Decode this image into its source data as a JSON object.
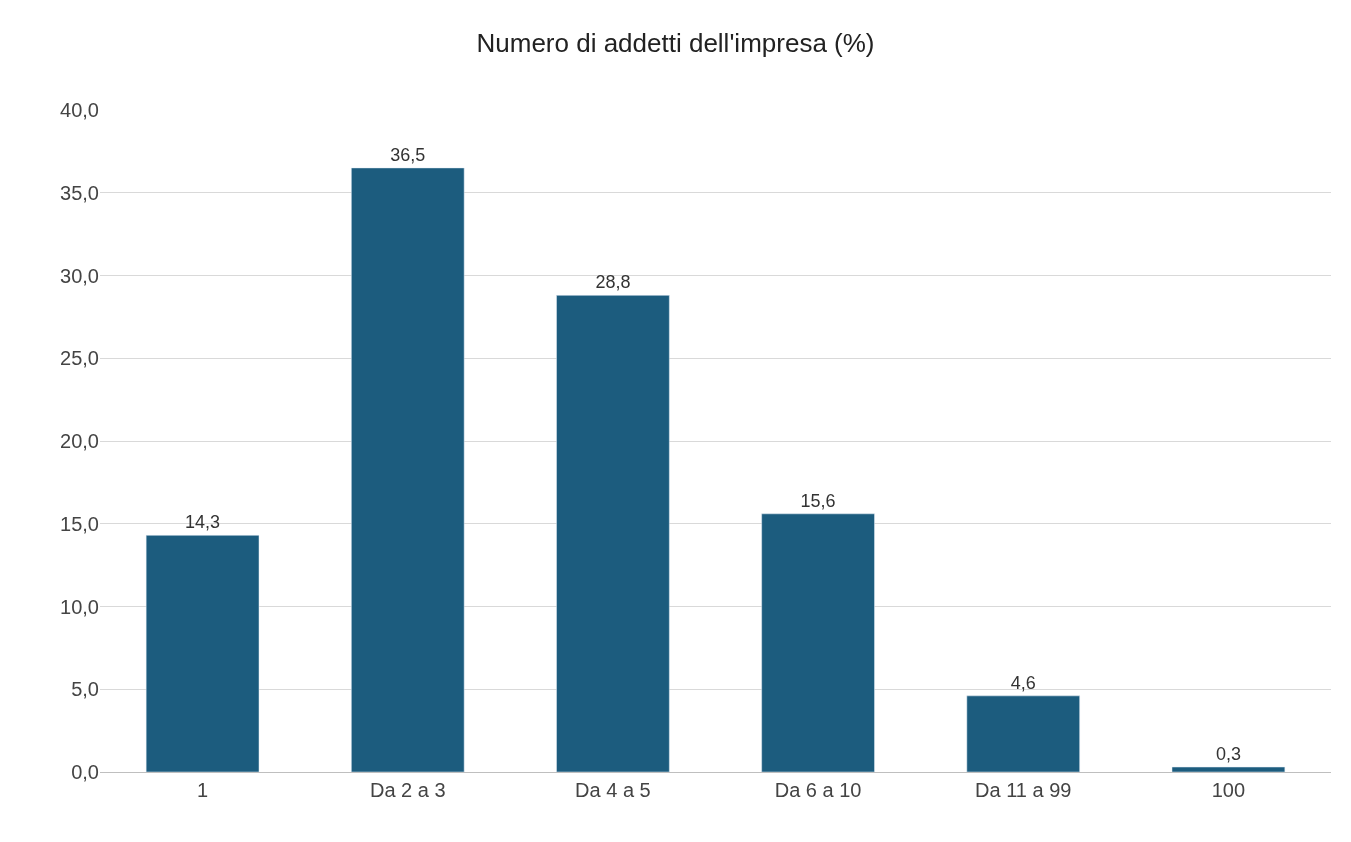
{
  "chart_data": {
    "type": "bar",
    "title": "Numero di addetti dell'impresa (%)",
    "categories": [
      "1",
      "Da 2 a 3",
      "Da 4 a 5",
      "Da 6 a 10",
      "Da 11 a 99",
      "100"
    ],
    "values": [
      14.3,
      36.5,
      28.8,
      15.6,
      4.6,
      0.3
    ],
    "value_labels": [
      "14,3",
      "36,5",
      "28,8",
      "15,6",
      "4,6",
      "0,3"
    ],
    "color": "#1c5c7e",
    "ylim": [
      0,
      40
    ],
    "yticks": [
      {
        "value": 0,
        "label": "0,0"
      },
      {
        "value": 5,
        "label": "5,0"
      },
      {
        "value": 10,
        "label": "10,0"
      },
      {
        "value": 15,
        "label": "15,0"
      },
      {
        "value": 20,
        "label": "20,0"
      },
      {
        "value": 25,
        "label": "25,0"
      },
      {
        "value": 30,
        "label": "30,0"
      },
      {
        "value": 35,
        "label": "35,0"
      },
      {
        "value": 40,
        "label": "40,0"
      }
    ],
    "grid": "y",
    "legend": false
  }
}
